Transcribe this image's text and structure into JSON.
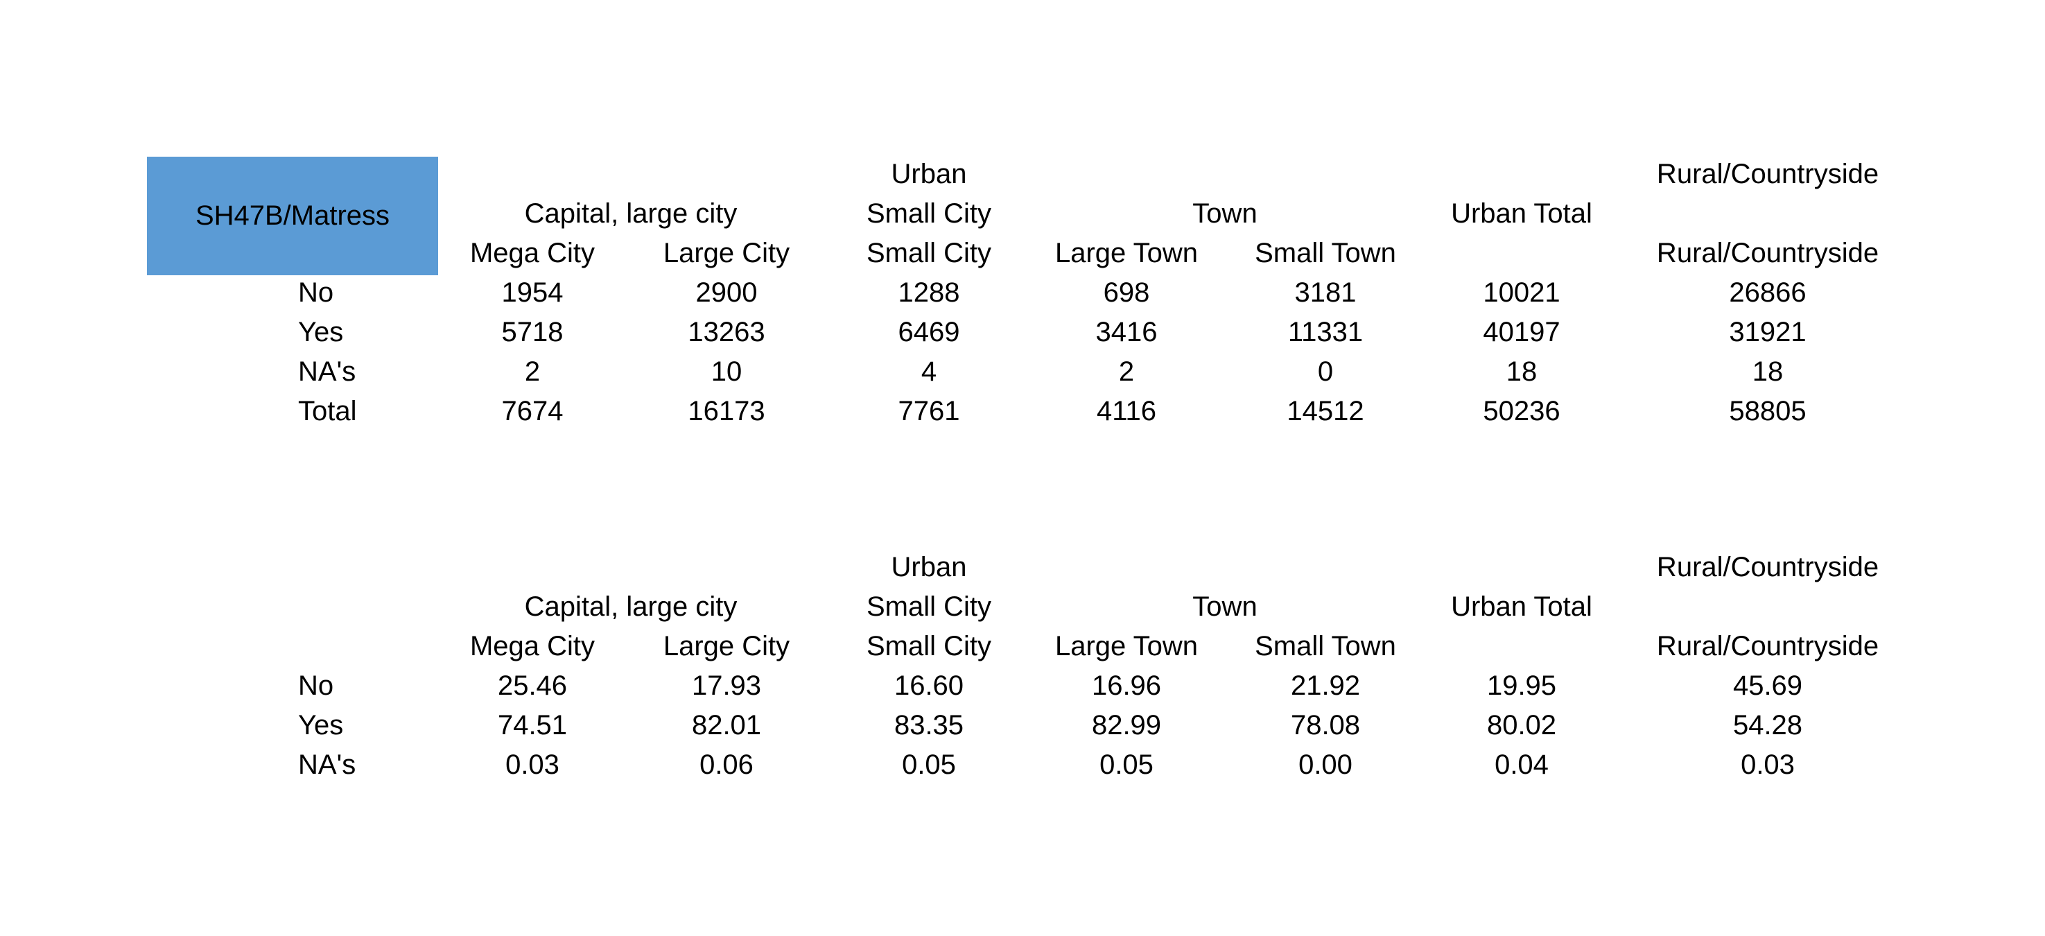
{
  "title": "SH47B/Matress",
  "colors": {
    "title_bg": "#5b9bd5",
    "text": "#000000",
    "background": "#ffffff"
  },
  "header": {
    "row1": {
      "urban": "Urban",
      "rural": "Rural/Countryside"
    },
    "row2": {
      "capital": "Capital, large city",
      "small_city": "Small City",
      "town": "Town",
      "urban_total": "Urban Total"
    },
    "row3": {
      "mega_city": "Mega City",
      "large_city": "Large City",
      "small_city": "Small City",
      "large_town": "Large Town",
      "small_town": "Small Town",
      "rural": "Rural/Countryside"
    }
  },
  "counts": {
    "rows": [
      {
        "label": "No",
        "values": [
          "1954",
          "2900",
          "1288",
          "698",
          "3181",
          "10021",
          "26866"
        ]
      },
      {
        "label": "Yes",
        "values": [
          "5718",
          "13263",
          "6469",
          "3416",
          "11331",
          "40197",
          "31921"
        ]
      },
      {
        "label": "NA's",
        "values": [
          "2",
          "10",
          "4",
          "2",
          "0",
          "18",
          "18"
        ]
      },
      {
        "label": "Total",
        "values": [
          "7674",
          "16173",
          "7761",
          "4116",
          "14512",
          "50236",
          "58805"
        ]
      }
    ]
  },
  "percentages": {
    "rows": [
      {
        "label": "No",
        "values": [
          "25.46",
          "17.93",
          "16.60",
          "16.96",
          "21.92",
          "19.95",
          "45.69"
        ]
      },
      {
        "label": "Yes",
        "values": [
          "74.51",
          "82.01",
          "83.35",
          "82.99",
          "78.08",
          "80.02",
          "54.28"
        ]
      },
      {
        "label": "NA's",
        "values": [
          "0.03",
          "0.06",
          "0.05",
          "0.05",
          "0.00",
          "0.04",
          "0.03"
        ]
      }
    ]
  }
}
